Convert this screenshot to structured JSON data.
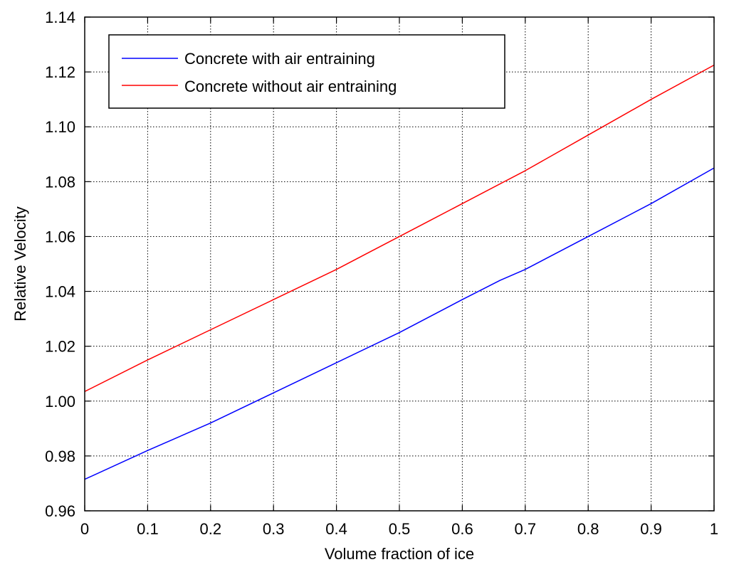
{
  "chart_data": {
    "type": "line",
    "xlabel": "Volume fraction of ice",
    "ylabel": "Relative  Velocity",
    "xlim": [
      0,
      1
    ],
    "ylim": [
      0.96,
      1.14
    ],
    "xticks": [
      0,
      0.1,
      0.2,
      0.3,
      0.4,
      0.5,
      0.6,
      0.7,
      0.8,
      0.9,
      1
    ],
    "xtick_labels": [
      "0",
      "0.1",
      "0.2",
      "0.3",
      "0.4",
      "0.5",
      "0.6",
      "0.7",
      "0.8",
      "0.9",
      "1"
    ],
    "yticks": [
      0.96,
      0.98,
      1.0,
      1.02,
      1.04,
      1.06,
      1.08,
      1.1,
      1.12,
      1.14
    ],
    "ytick_labels": [
      "0.96",
      "0.98",
      "1.00",
      "1.02",
      "1.04",
      "1.06",
      "1.08",
      "1.10",
      "1.12",
      "1.14"
    ],
    "grid": true,
    "legend_position": "top-left",
    "series": [
      {
        "name": "Concrete with air entraining",
        "color": "#0000ff",
        "x": [
          0,
          0.1,
          0.2,
          0.3,
          0.4,
          0.5,
          0.6,
          0.66,
          0.7,
          0.8,
          0.9,
          1
        ],
        "y": [
          0.9715,
          0.982,
          0.992,
          1.003,
          1.014,
          1.025,
          1.037,
          1.044,
          1.048,
          1.06,
          1.072,
          1.085
        ]
      },
      {
        "name": "Concrete without air entraining",
        "color": "#ff0000",
        "x": [
          0,
          0.1,
          0.2,
          0.3,
          0.4,
          0.5,
          0.55,
          0.6,
          0.7,
          0.8,
          0.9,
          1
        ],
        "y": [
          1.0035,
          1.015,
          1.026,
          1.037,
          1.048,
          1.06,
          1.066,
          1.072,
          1.084,
          1.097,
          1.11,
          1.1225
        ]
      }
    ]
  }
}
